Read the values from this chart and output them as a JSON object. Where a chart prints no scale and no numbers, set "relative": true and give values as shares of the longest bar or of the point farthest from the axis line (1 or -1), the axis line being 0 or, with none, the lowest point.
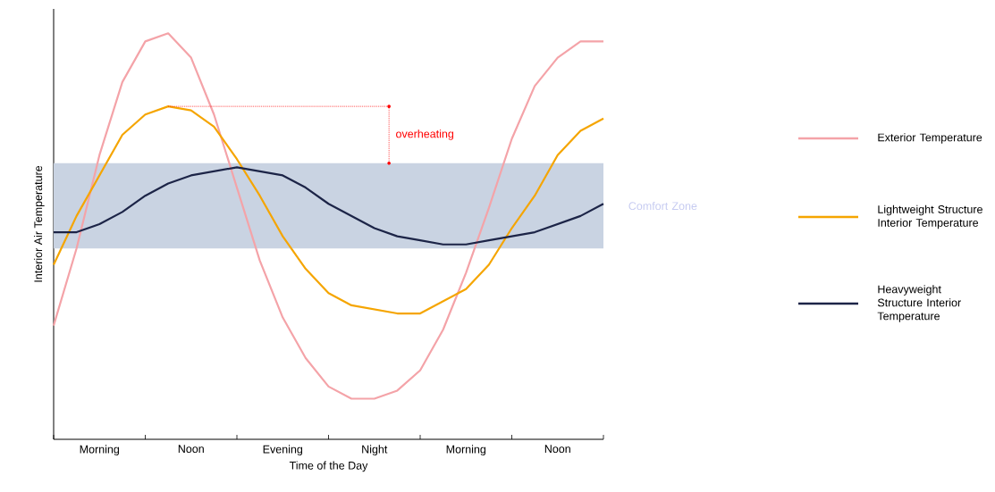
{
  "chart_data": {
    "type": "line",
    "relative": true,
    "xlabel": "Time of the Day",
    "ylabel": "Interior Air Temperature",
    "categories": [
      null,
      null,
      "Morning",
      null,
      null,
      null,
      "Noon",
      null,
      null,
      null,
      "Evening",
      null,
      null,
      null,
      "Night",
      null,
      null,
      null,
      "Morning",
      null,
      null,
      null,
      "Noon",
      null,
      null
    ],
    "series": [
      {
        "name": "Exterior Temperature",
        "color": "#f4a3a8",
        "values": [
          0.28,
          0.47,
          0.7,
          0.88,
          0.98,
          1.0,
          0.94,
          0.8,
          0.62,
          0.44,
          0.3,
          0.2,
          0.13,
          0.1,
          0.1,
          0.12,
          0.17,
          0.27,
          0.41,
          0.57,
          0.74,
          0.87,
          0.94,
          0.98,
          0.98
        ]
      },
      {
        "name": "Lightweight Structure Interior Temperature",
        "color": "#f5a500",
        "values": [
          0.43,
          0.55,
          0.65,
          0.75,
          0.8,
          0.82,
          0.81,
          0.77,
          0.69,
          0.6,
          0.5,
          0.42,
          0.36,
          0.33,
          0.32,
          0.31,
          0.31,
          0.34,
          0.37,
          0.43,
          0.52,
          0.6,
          0.7,
          0.76,
          0.79
        ]
      },
      {
        "name": "Heavyweight Structure Interior Temperature",
        "color": "#1c2447",
        "values": [
          0.51,
          0.51,
          0.53,
          0.56,
          0.6,
          0.63,
          0.65,
          0.66,
          0.67,
          0.66,
          0.65,
          0.62,
          0.58,
          0.55,
          0.52,
          0.5,
          0.49,
          0.48,
          0.48,
          0.49,
          0.5,
          0.51,
          0.53,
          0.55,
          0.58
        ]
      }
    ],
    "bands": [
      {
        "axis": "y",
        "from": 0.47,
        "to": 0.68,
        "label": "Comfort Zone",
        "color": "#c9d3e2"
      }
    ],
    "annotations": [
      "overheating"
    ],
    "legend": "right",
    "grid": false,
    "marker": "none",
    "line_style": "solid"
  }
}
